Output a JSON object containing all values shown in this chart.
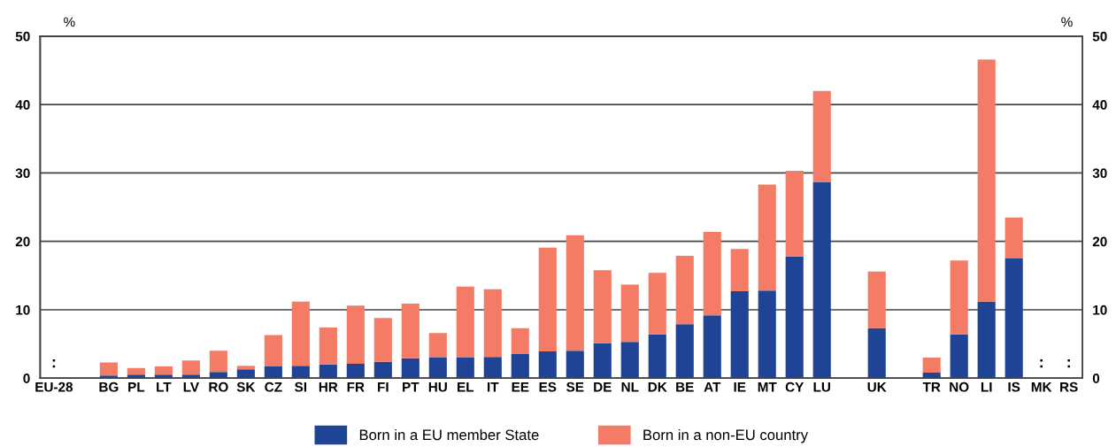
{
  "chart_data": {
    "type": "bar",
    "stacked": true,
    "categories": [
      "EU-28",
      null,
      "BG",
      "PL",
      "LT",
      "LV",
      "RO",
      "SK",
      "CZ",
      "SI",
      "HR",
      "FR",
      "FI",
      "PT",
      "HU",
      "EL",
      "IT",
      "EE",
      "ES",
      "SE",
      "DE",
      "NL",
      "DK",
      "BE",
      "AT",
      "IE",
      "MT",
      "CY",
      "LU",
      null,
      "UK",
      null,
      "TR",
      "NO",
      "LI",
      "IS",
      "MK",
      "RS"
    ],
    "series": [
      {
        "name": "Born in a EU member State",
        "color": "#1f4496",
        "values": [
          null,
          null,
          0.4,
          0.5,
          0.5,
          0.5,
          0.9,
          1.3,
          1.7,
          1.8,
          2.0,
          2.1,
          2.4,
          2.9,
          3.0,
          3.0,
          3.1,
          3.6,
          3.9,
          4.0,
          5.1,
          5.3,
          6.4,
          7.9,
          9.2,
          12.7,
          12.8,
          17.8,
          28.7,
          null,
          7.3,
          null,
          0.8,
          6.4,
          11.2,
          17.5,
          null,
          null
        ],
        "value_labels": [
          ":",
          null,
          null,
          null,
          null,
          null,
          null,
          null,
          null,
          null,
          null,
          null,
          null,
          null,
          null,
          null,
          null,
          null,
          null,
          null,
          null,
          null,
          null,
          null,
          null,
          null,
          null,
          null,
          null,
          null,
          null,
          null,
          null,
          null,
          null,
          null,
          ":",
          ":"
        ]
      },
      {
        "name": "Born in a non-EU country",
        "color": "#f47c66",
        "values": [
          null,
          null,
          1.9,
          1.0,
          1.2,
          2.1,
          3.1,
          0.5,
          4.6,
          9.4,
          5.4,
          8.5,
          6.4,
          8.0,
          3.6,
          10.4,
          9.9,
          3.7,
          15.2,
          16.9,
          10.7,
          8.4,
          9.0,
          10.0,
          12.2,
          6.2,
          15.5,
          12.5,
          13.3,
          null,
          8.3,
          null,
          2.2,
          10.8,
          35.4,
          6.0,
          null,
          null
        ]
      }
    ],
    "ylabel": "%",
    "y2label": "%",
    "ylim": [
      0,
      50
    ],
    "yticks": [
      0,
      10,
      20,
      30,
      40,
      50
    ],
    "y2lim": [
      0,
      50
    ],
    "y2ticks": [
      0,
      10,
      20,
      30,
      40,
      50
    ],
    "grid": "y",
    "legend": "bottom"
  }
}
